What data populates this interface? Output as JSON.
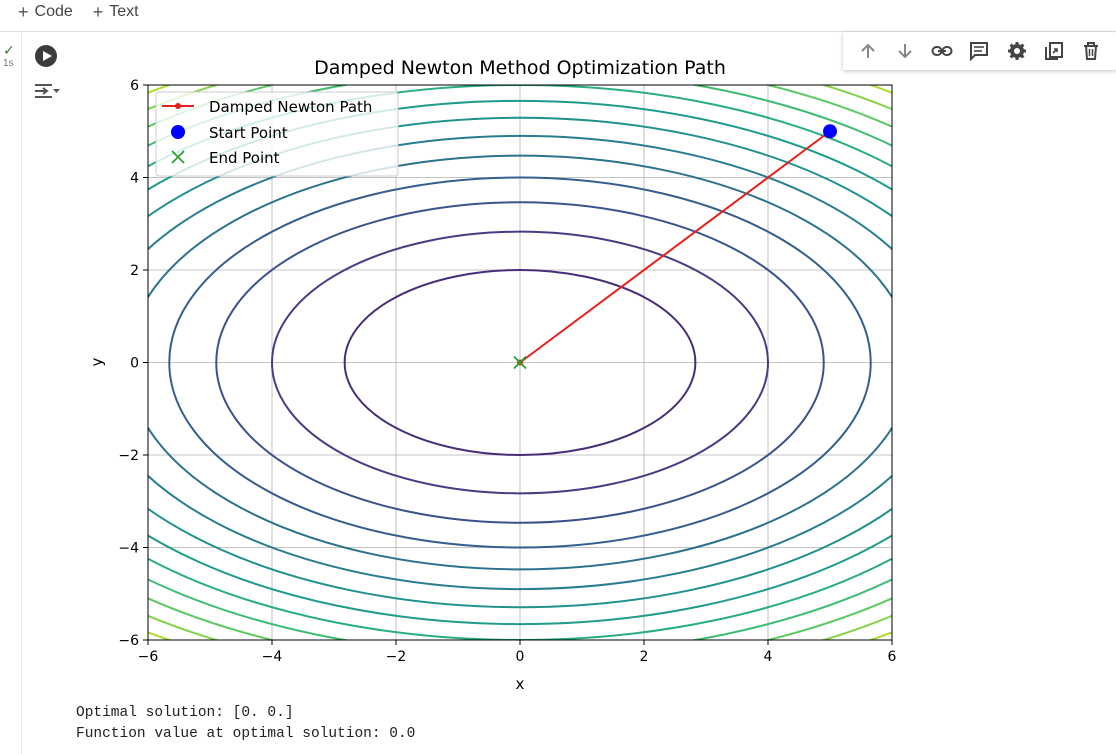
{
  "toolbar": {
    "code_label": "Code",
    "text_label": "Text"
  },
  "cell": {
    "exec_time": "1s",
    "output_lines": [
      "Optimal solution: [0. 0.]",
      "Function value at optimal solution: 0.0"
    ]
  },
  "cell_toolbar_icons": [
    "arrow-up-icon",
    "arrow-down-icon",
    "link-icon",
    "comment-icon",
    "settings-icon",
    "mirror-cell-icon",
    "delete-icon"
  ],
  "colors": {
    "path": "#e8201c",
    "start": "#0000ff",
    "end": "#2ca02c"
  },
  "chart_data": {
    "type": "contour",
    "title": "Damped Newton Method Optimization Path",
    "xlabel": "x",
    "ylabel": "y",
    "xlim": [
      -6,
      6
    ],
    "ylim": [
      -6,
      6
    ],
    "xticks": [
      "−6",
      "−4",
      "−2",
      "0",
      "2",
      "4",
      "6"
    ],
    "yticks": [
      "−6",
      "−4",
      "−2",
      "0",
      "2",
      "4",
      "6"
    ],
    "grid": true,
    "legend_position": "upper-left",
    "contour_function": "x^2 + 2*y^2",
    "contour_levels": [
      8,
      16,
      24,
      32,
      40,
      48,
      56,
      64,
      72,
      80,
      88,
      96,
      104,
      112,
      120
    ],
    "contour_colors": [
      "#472c7a",
      "#433e85",
      "#3b528b",
      "#355f8d",
      "#2c728e",
      "#287d8e",
      "#21918c",
      "#1e9b8a",
      "#28ae80",
      "#3fbc73",
      "#5ec962",
      "#84d44b",
      "#addc30",
      "#d8e219",
      "#fde725"
    ],
    "series": [
      {
        "name": "Damped Newton Path",
        "points": [
          [
            5,
            5
          ],
          [
            0,
            0
          ]
        ]
      },
      {
        "name": "Start Point",
        "points": [
          [
            5,
            5
          ]
        ]
      },
      {
        "name": "End Point",
        "points": [
          [
            0,
            0
          ]
        ]
      }
    ]
  }
}
